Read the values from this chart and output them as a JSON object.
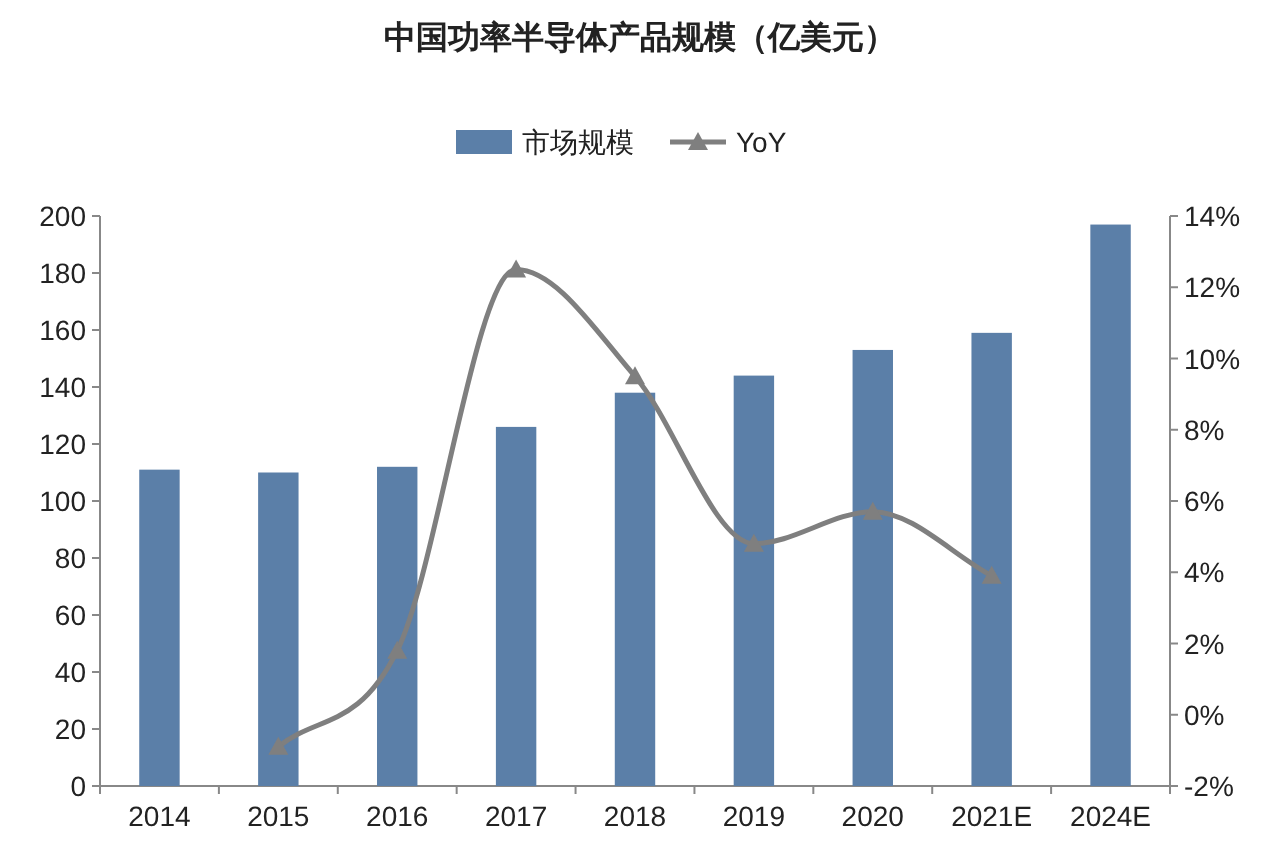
{
  "chart_data": {
    "type": "bar",
    "title": "中国功率半导体产品规模（亿美元）",
    "categories": [
      "2014",
      "2015",
      "2016",
      "2017",
      "2018",
      "2019",
      "2020",
      "2021E",
      "2024E"
    ],
    "series": [
      {
        "name": "市场规模",
        "color": "#5b7fa8",
        "values": [
          111,
          110,
          112,
          126,
          138,
          144,
          153,
          159,
          197
        ]
      },
      {
        "name": "YoY",
        "type": "line",
        "axis": "y2",
        "color": "#7f7f7f",
        "marker": "triangle",
        "line_style": "solid",
        "values": [
          null,
          -0.9,
          1.8,
          12.5,
          9.5,
          4.8,
          5.7,
          3.9,
          null
        ]
      }
    ],
    "ylim": [
      0,
      200
    ],
    "yticks": [
      0,
      20,
      40,
      60,
      80,
      100,
      120,
      140,
      160,
      180,
      200
    ],
    "y2lim": [
      -2,
      14
    ],
    "y2ticks": [
      {
        "value": -2,
        "label": "-2%"
      },
      {
        "value": 0,
        "label": "0%"
      },
      {
        "value": 2,
        "label": "2%"
      },
      {
        "value": 4,
        "label": "4%"
      },
      {
        "value": 6,
        "label": "6%"
      },
      {
        "value": 8,
        "label": "8%"
      },
      {
        "value": 10,
        "label": "10%"
      },
      {
        "value": 12,
        "label": "12%"
      },
      {
        "value": 14,
        "label": "14%"
      }
    ],
    "grid": false,
    "legend": "top"
  }
}
